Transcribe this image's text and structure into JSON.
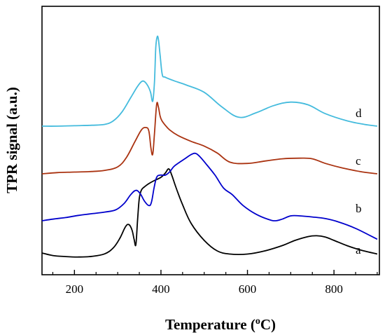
{
  "chart_data": {
    "type": "line",
    "title": "",
    "xlabel": "Temperature (",
    "xlabel_sup": "o",
    "xlabel_unit": "C)",
    "ylabel": "TPR signal (a.u.)",
    "xlim": [
      125,
      905
    ],
    "xticks": [
      200,
      400,
      600,
      800
    ],
    "yticks_shown": false,
    "grid": false,
    "legend": "none",
    "series": [
      {
        "name": "a",
        "color": "#000000",
        "x": [
          125,
          150,
          180,
          210,
          240,
          270,
          290,
          305,
          318,
          326,
          333,
          338,
          342,
          346,
          350,
          355,
          362,
          372,
          385,
          400,
          410,
          418,
          425,
          435,
          450,
          470,
          500,
          530,
          560,
          600,
          640,
          680,
          710,
          740,
          760,
          780,
          800,
          830,
          860,
          900
        ],
        "y": [
          2,
          0.8,
          0.3,
          0.1,
          0.4,
          1.6,
          4.5,
          9,
          14.5,
          15.5,
          13,
          8.5,
          6,
          18,
          28,
          32,
          33.5,
          35,
          36.5,
          38,
          40,
          42,
          39,
          33,
          25,
          16,
          8,
          3,
          1.5,
          1.5,
          3,
          5.5,
          8,
          9.8,
          10.2,
          9.6,
          8,
          5.5,
          3.5,
          1.5
        ]
      },
      {
        "name": "b",
        "color": "#0000cc",
        "x": [
          125,
          150,
          180,
          210,
          240,
          270,
          295,
          315,
          330,
          342,
          352,
          362,
          372,
          378,
          384,
          390,
          398,
          410,
          420,
          430,
          440,
          455,
          470,
          480,
          490,
          505,
          525,
          545,
          565,
          590,
          620,
          650,
          665,
          680,
          700,
          720,
          750,
          780,
          810,
          850,
          900
        ],
        "y": [
          0,
          1.5,
          3,
          5,
          6.5,
          8,
          10,
          16,
          24,
          28,
          25,
          18,
          14,
          17,
          30,
          40,
          42,
          42,
          45,
          50,
          53,
          57,
          61,
          62,
          59,
          52,
          42,
          30,
          24,
          14,
          6,
          1,
          0,
          1.5,
          4.5,
          4.5,
          3.5,
          2,
          -1,
          -7,
          -17
        ]
      },
      {
        "name": "c",
        "color": "#aa3311",
        "x": [
          125,
          160,
          200,
          240,
          270,
          300,
          320,
          340,
          355,
          365,
          372,
          377,
          381,
          385,
          390,
          394,
          398,
          402,
          410,
          420,
          440,
          470,
          500,
          530,
          560,
          600,
          640,
          680,
          720,
          750,
          780,
          820,
          860,
          900
        ],
        "y": [
          0,
          1,
          1.5,
          2,
          3,
          6,
          14,
          28,
          38,
          40,
          37,
          22,
          17,
          35,
          60,
          58,
          50,
          46,
          42,
          38,
          33,
          28,
          24,
          18,
          10,
          9,
          11,
          13,
          13.5,
          13,
          9,
          5,
          2,
          0
        ]
      },
      {
        "name": "d",
        "color": "#44bbdd",
        "x": [
          125,
          160,
          200,
          240,
          270,
          290,
          310,
          330,
          345,
          355,
          362,
          370,
          376,
          381,
          385,
          388,
          391,
          394,
          398,
          403,
          410,
          430,
          460,
          500,
          540,
          580,
          620,
          660,
          700,
          740,
          780,
          830,
          870,
          900
        ],
        "y": [
          0,
          0,
          0.5,
          1,
          2,
          6,
          16,
          32,
          44,
          50,
          50,
          45,
          38,
          28,
          50,
          88,
          100,
          98,
          80,
          58,
          55,
          51,
          46,
          38,
          22,
          10,
          15,
          23,
          27,
          24,
          14,
          6,
          2,
          0
        ]
      }
    ]
  }
}
